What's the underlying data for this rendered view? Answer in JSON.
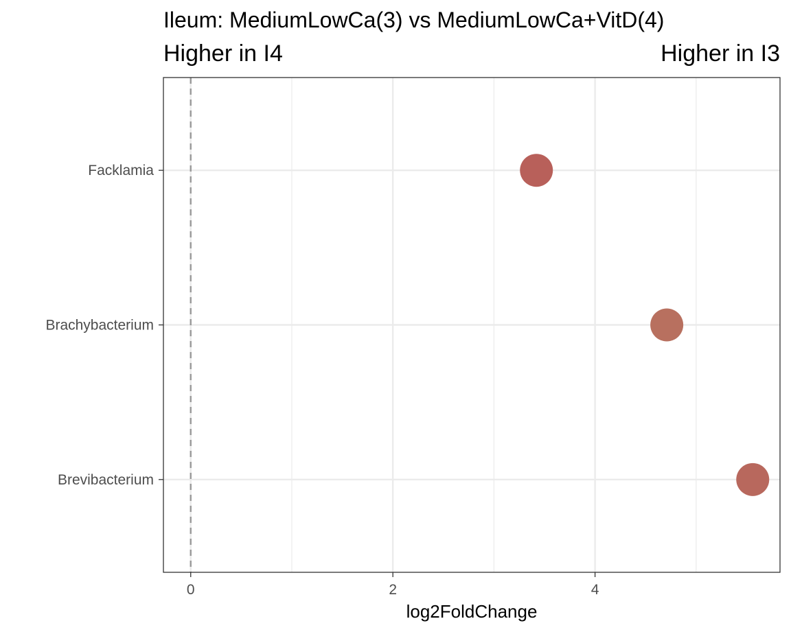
{
  "chart_data": {
    "type": "scatter",
    "title": "Ileum: MediumLowCa(3) vs MediumLowCa+VitD(4)",
    "subtitle_left": "Higher in I4",
    "subtitle_right": "Higher in I3",
    "xlabel": "log2FoldChange",
    "ylabel": "",
    "xlim": [
      -0.27,
      5.83
    ],
    "x_ticks": [
      0,
      2,
      4
    ],
    "x_minor_ticks": [
      1,
      3,
      5
    ],
    "categories": [
      "Facklamia",
      "Brachybacterium",
      "Brevibacterium"
    ],
    "x": [
      3.42,
      4.71,
      5.56
    ],
    "point_colors": [
      "#b8605a",
      "#b8705f",
      "#b8685d"
    ],
    "reference_line_x": 0,
    "grid": true
  }
}
